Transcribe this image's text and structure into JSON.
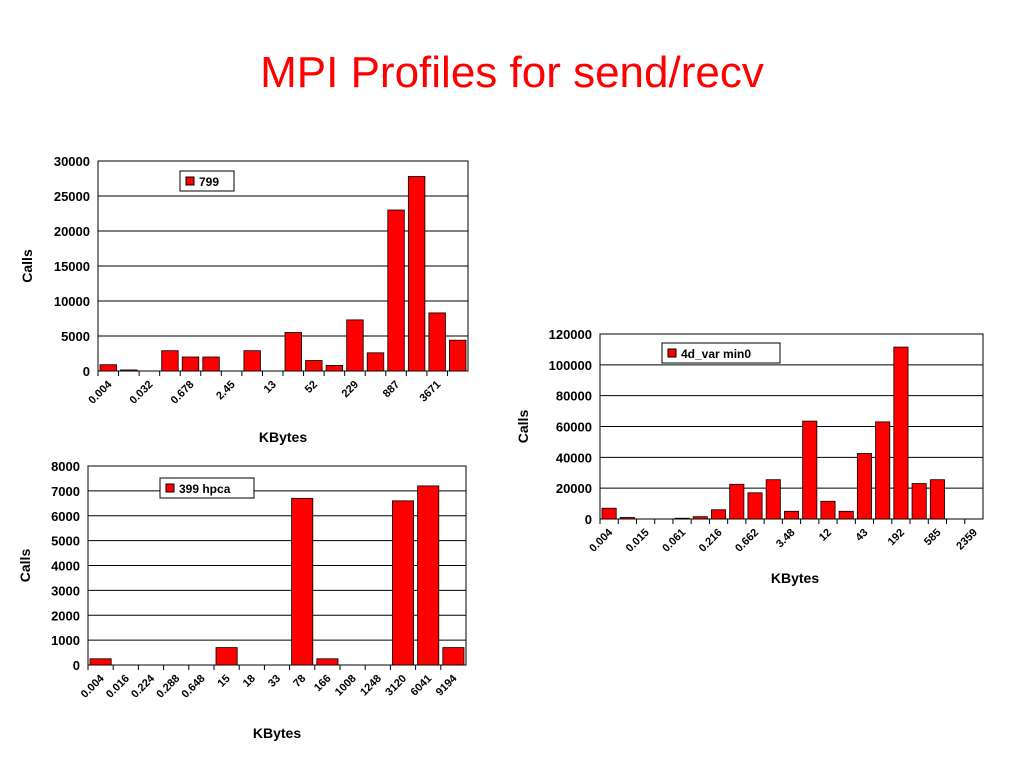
{
  "title": "MPI Profiles for send/recv",
  "chart_data": [
    {
      "type": "bar",
      "legend": "799",
      "xlabel": "KBytes",
      "ylabel": "Calls",
      "ylim": [
        0,
        30000
      ],
      "yticks": [
        0,
        5000,
        10000,
        15000,
        20000,
        25000,
        30000
      ],
      "grid": true,
      "legend_position": "top-left",
      "categories": [
        "0.004",
        "",
        "0.032",
        "",
        "0.678",
        "",
        "2.45",
        "",
        "13",
        "",
        "52",
        "",
        "229",
        "",
        "887",
        "",
        "3671",
        ""
      ],
      "values": [
        900,
        150,
        0,
        2900,
        2000,
        2000,
        0,
        2900,
        0,
        5500,
        1500,
        800,
        7300,
        2600,
        23000,
        27800,
        8300,
        4400
      ]
    },
    {
      "type": "bar",
      "legend": "399 hpca",
      "xlabel": "KBytes",
      "ylabel": "Calls",
      "ylim": [
        0,
        8000
      ],
      "yticks": [
        0,
        1000,
        2000,
        3000,
        4000,
        5000,
        6000,
        7000,
        8000
      ],
      "grid": true,
      "legend_position": "top-left",
      "categories": [
        "0.004",
        "0.016",
        "0.224",
        "0.288",
        "0.648",
        "15",
        "18",
        "33",
        "78",
        "166",
        "1008",
        "1248",
        "3120",
        "6041",
        "9194"
      ],
      "values": [
        250,
        0,
        0,
        0,
        0,
        700,
        0,
        0,
        6700,
        250,
        0,
        0,
        6600,
        7200,
        700
      ]
    },
    {
      "type": "bar",
      "legend": "4d_var min0",
      "xlabel": "KBytes",
      "ylabel": "Calls",
      "ylim": [
        0,
        120000
      ],
      "yticks": [
        0,
        20000,
        40000,
        60000,
        80000,
        100000,
        120000
      ],
      "grid": true,
      "legend_position": "top-left",
      "categories": [
        "0.004",
        "",
        "0.015",
        "",
        "0.061",
        "",
        "0.216",
        "",
        "0.662",
        "",
        "3.48",
        "",
        "12",
        "",
        "43",
        "",
        "192",
        "",
        "585",
        "",
        "2359"
      ],
      "values": [
        7000,
        1000,
        0,
        0,
        500,
        1500,
        6000,
        22500,
        17000,
        25500,
        5000,
        63500,
        11500,
        5000,
        42500,
        63000,
        111500,
        23000,
        25500,
        0,
        0
      ]
    }
  ]
}
